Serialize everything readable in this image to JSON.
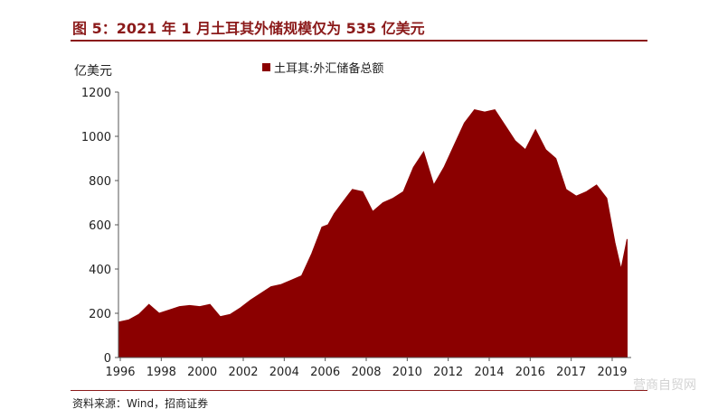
{
  "title": "图 5：2021 年 1 月土耳其外储规模仅为 535 亿美元",
  "source": "资料来源：Wind，招商证券",
  "watermark": "营商自贸网",
  "chart_data": {
    "type": "area",
    "title": "",
    "xlabel": "",
    "ylabel": "亿美元",
    "ylim": [
      0,
      1200
    ],
    "yticks": [
      0,
      200,
      400,
      600,
      800,
      1000,
      1200
    ],
    "xticks": [
      "1996",
      "1998",
      "2000",
      "2002",
      "2004",
      "2006",
      "2008",
      "2010",
      "2012",
      "2014",
      "2016",
      "2017",
      "2019"
    ],
    "grid": false,
    "legend_position": "top",
    "colors": {
      "series": "#8b0000"
    },
    "series": [
      {
        "name": "土耳其:外汇储备总额",
        "x": [
          1996.0,
          1996.5,
          1997.0,
          1997.5,
          1998.0,
          1998.5,
          1999.0,
          1999.5,
          2000.0,
          2000.5,
          2001.0,
          2001.5,
          2002.0,
          2002.5,
          2003.0,
          2003.5,
          2004.0,
          2004.5,
          2005.0,
          2005.5,
          2006.0,
          2006.3,
          2006.6,
          2007.0,
          2007.5,
          2008.0,
          2008.5,
          2009.0,
          2009.5,
          2010.0,
          2010.5,
          2011.0,
          2011.5,
          2012.0,
          2012.5,
          2013.0,
          2013.5,
          2014.0,
          2014.5,
          2015.0,
          2015.5,
          2016.0,
          2016.5,
          2017.0,
          2017.5,
          2018.0,
          2018.5,
          2019.0,
          2019.5,
          2020.0,
          2020.4,
          2020.7,
          2021.0
        ],
        "values": [
          160,
          170,
          195,
          240,
          200,
          215,
          230,
          235,
          230,
          240,
          185,
          195,
          225,
          260,
          290,
          320,
          330,
          350,
          370,
          470,
          590,
          600,
          650,
          700,
          760,
          750,
          660,
          700,
          720,
          750,
          860,
          930,
          780,
          860,
          960,
          1060,
          1120,
          1110,
          1120,
          1050,
          980,
          940,
          1030,
          940,
          900,
          760,
          730,
          750,
          780,
          720,
          520,
          400,
          535
        ]
      }
    ]
  }
}
